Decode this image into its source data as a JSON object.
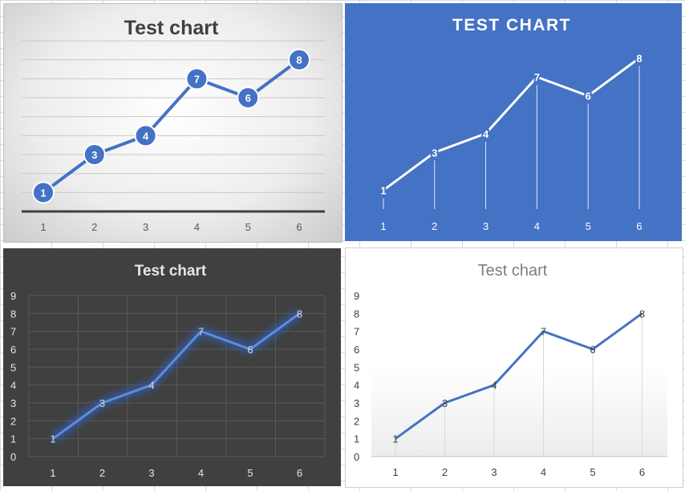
{
  "chart_data": [
    {
      "type": "line",
      "title": "Test chart",
      "categories": [
        "1",
        "2",
        "3",
        "4",
        "5",
        "6"
      ],
      "values": [
        1,
        3,
        4,
        7,
        6,
        8
      ],
      "data_labels": [
        "1",
        "3",
        "4",
        "7",
        "6",
        "8"
      ],
      "ylim": [
        0,
        9
      ],
      "yticks_visible": false,
      "grid": true,
      "legend": "none",
      "colors": {
        "line": "#4472c4",
        "marker": "#4472c4",
        "label": "#ffffff",
        "title": "#404040",
        "tick": "#595959",
        "grid": "#c8c8c8",
        "axis": "#404040"
      }
    },
    {
      "type": "line",
      "title": "TEST CHART",
      "categories": [
        "1",
        "2",
        "3",
        "4",
        "5",
        "6"
      ],
      "values": [
        1,
        3,
        4,
        7,
        6,
        8
      ],
      "data_labels": [
        "1",
        "3",
        "4",
        "7",
        "6",
        "8"
      ],
      "ylim": [
        0,
        9
      ],
      "yticks_visible": false,
      "grid": false,
      "drop_lines": true,
      "legend": "none",
      "colors": {
        "background": "#4472c4",
        "line": "#ffffff",
        "label": "#ffffff",
        "title": "#ffffff",
        "tick": "#ffffff"
      }
    },
    {
      "type": "line",
      "title": "Test chart",
      "categories": [
        "1",
        "2",
        "3",
        "4",
        "5",
        "6"
      ],
      "values": [
        1,
        3,
        4,
        7,
        6,
        8
      ],
      "data_labels": [
        "1",
        "3",
        "4",
        "7",
        "6",
        "8"
      ],
      "yticks": [
        "0",
        "1",
        "2",
        "3",
        "4",
        "5",
        "6",
        "7",
        "8",
        "9"
      ],
      "ylim": [
        0,
        9
      ],
      "grid": true,
      "legend": "none",
      "colors": {
        "background": "#404040",
        "line": "#5b8ddb",
        "glow": "#2f62c8",
        "label": "#d9d9d9",
        "title": "#e6e6e6",
        "tick": "#e6e6e6",
        "grid": "#595959"
      }
    },
    {
      "type": "line",
      "title": "Test chart",
      "categories": [
        "1",
        "2",
        "3",
        "4",
        "5",
        "6"
      ],
      "values": [
        1,
        3,
        4,
        7,
        6,
        8
      ],
      "data_labels": [
        "1",
        "3",
        "4",
        "7",
        "6",
        "8"
      ],
      "yticks": [
        "0",
        "1",
        "2",
        "3",
        "4",
        "5",
        "6",
        "7",
        "8",
        "9"
      ],
      "ylim": [
        0,
        9
      ],
      "grid": false,
      "drop_lines": true,
      "legend": "none",
      "colors": {
        "line": "#4472c4",
        "label": "#404040",
        "title": "#7f7f7f",
        "tick": "#404040",
        "drop": "#d9d9d9",
        "axis": "#bfbfbf"
      }
    }
  ]
}
